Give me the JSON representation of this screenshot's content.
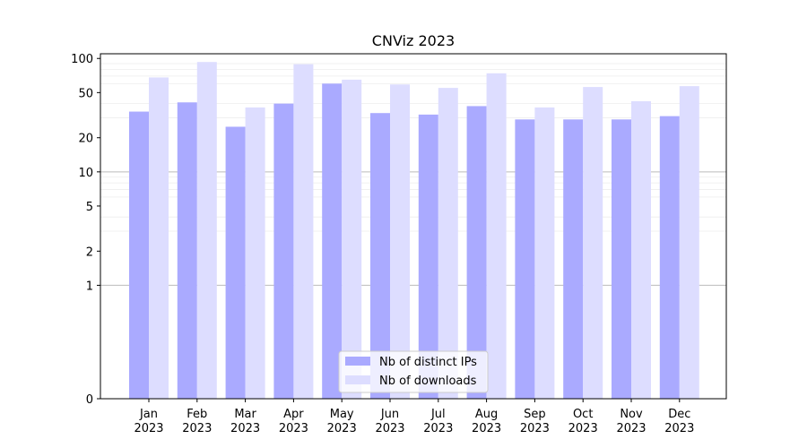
{
  "chart_data": {
    "type": "bar",
    "title": "CNViz 2023",
    "xlabel": "",
    "ylabel": "",
    "yscale": "symlog",
    "ylim": [
      0,
      110
    ],
    "yticks": [
      0,
      1,
      2,
      5,
      10,
      20,
      50,
      100
    ],
    "grid": "horizontal",
    "legend_position": "bottom-center",
    "categories": [
      [
        "Jan",
        "2023"
      ],
      [
        "Feb",
        "2023"
      ],
      [
        "Mar",
        "2023"
      ],
      [
        "Apr",
        "2023"
      ],
      [
        "May",
        "2023"
      ],
      [
        "Jun",
        "2023"
      ],
      [
        "Jul",
        "2023"
      ],
      [
        "Aug",
        "2023"
      ],
      [
        "Sep",
        "2023"
      ],
      [
        "Oct",
        "2023"
      ],
      [
        "Nov",
        "2023"
      ],
      [
        "Dec",
        "2023"
      ]
    ],
    "series": [
      {
        "name": "Nb of distinct IPs",
        "color": "#aaaaff",
        "values": [
          34,
          41,
          25,
          40,
          60,
          33,
          32,
          38,
          29,
          29,
          29,
          31
        ]
      },
      {
        "name": "Nb of downloads",
        "color": "#ddddff",
        "values": [
          68,
          93,
          37,
          89,
          65,
          59,
          55,
          74,
          37,
          56,
          42,
          57
        ]
      }
    ]
  }
}
